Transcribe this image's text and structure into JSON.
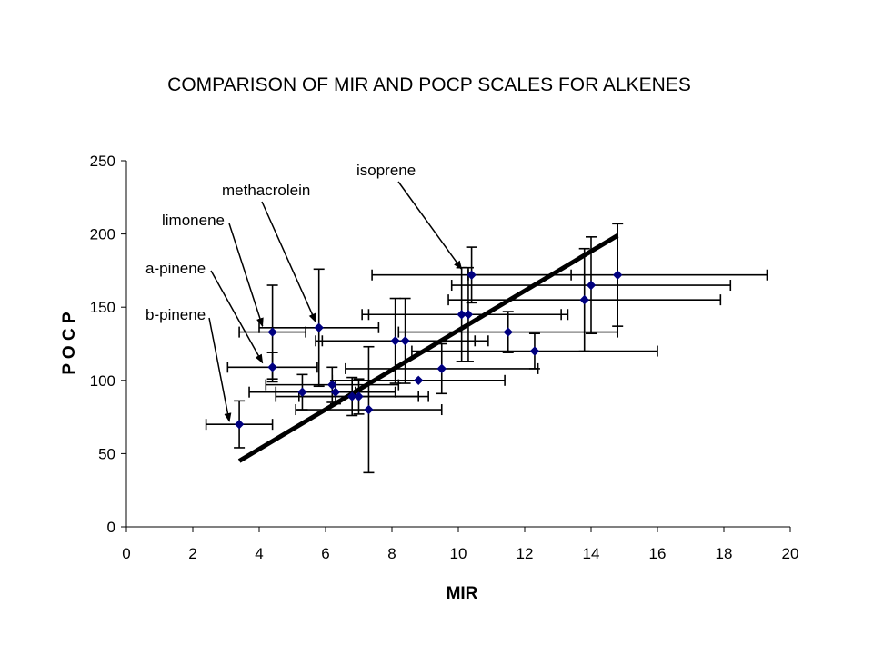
{
  "chart_data": {
    "type": "scatter",
    "title": "COMPARISON OF MIR AND POCP SCALES FOR ALKENES",
    "xlabel": "MIR",
    "ylabel": "P O C P",
    "xlim": [
      0,
      20
    ],
    "ylim": [
      0,
      250
    ],
    "x_ticks": [
      "0",
      "2",
      "4",
      "6",
      "8",
      "10",
      "12",
      "14",
      "16",
      "18",
      "20"
    ],
    "y_ticks": [
      "0",
      "50",
      "100",
      "150",
      "200",
      "250"
    ],
    "grid": false,
    "legend": "none",
    "marker_color": "#000080",
    "points": [
      {
        "x": 3.4,
        "y": 70,
        "xerr": 1.0,
        "yerr": 16
      },
      {
        "x": 4.4,
        "y": 109,
        "xerr": 1.35,
        "yerr": 10
      },
      {
        "x": 4.4,
        "y": 133,
        "xerr": 1.0,
        "yerr": 32
      },
      {
        "x": 5.3,
        "y": 92,
        "xerr": 1.6,
        "yerr": 12
      },
      {
        "x": 5.8,
        "y": 136,
        "xerr": 1.8,
        "yerr": 40
      },
      {
        "x": 6.2,
        "y": 97,
        "xerr": 2.0,
        "yerr": 12
      },
      {
        "x": 6.3,
        "y": 92,
        "xerr": 1.8,
        "yerr": 8
      },
      {
        "x": 6.8,
        "y": 89,
        "xerr": 2.3,
        "yerr": 13
      },
      {
        "x": 7.0,
        "y": 89,
        "xerr": 1.8,
        "yerr": 12
      },
      {
        "x": 7.3,
        "y": 80,
        "xerr": 2.2,
        "yerr": 43
      },
      {
        "x": 8.1,
        "y": 127,
        "xerr": 2.4,
        "yerr": 29
      },
      {
        "x": 8.4,
        "y": 127,
        "xerr": 2.5,
        "yerr": 29
      },
      {
        "x": 8.8,
        "y": 100,
        "xerr": 2.6,
        "yerr": 0
      },
      {
        "x": 9.5,
        "y": 108,
        "xerr": 2.9,
        "yerr": 17
      },
      {
        "x": 10.1,
        "y": 145,
        "xerr": 3.0,
        "yerr": 32
      },
      {
        "x": 10.3,
        "y": 145,
        "xerr": 3.0,
        "yerr": 32
      },
      {
        "x": 10.4,
        "y": 172,
        "xerr": 3.0,
        "yerr": 19
      },
      {
        "x": 11.5,
        "y": 133,
        "xerr": 3.3,
        "yerr": 14
      },
      {
        "x": 12.3,
        "y": 120,
        "xerr": 3.7,
        "yerr": 12
      },
      {
        "x": 13.8,
        "y": 155,
        "xerr": 4.1,
        "yerr": 35
      },
      {
        "x": 14.0,
        "y": 165,
        "xerr": 4.2,
        "yerr": 33
      },
      {
        "x": 14.8,
        "y": 172,
        "xerr": 4.5,
        "yerr": 35
      }
    ],
    "trendline": {
      "x": [
        3.4,
        14.8
      ],
      "y": [
        45,
        199
      ],
      "color": "#000000"
    },
    "annotations": [
      {
        "text": "isoprene",
        "target_x": 10.1,
        "target_y": 176
      },
      {
        "text": "methacrolein",
        "target_x": 5.7,
        "target_y": 140
      },
      {
        "text": "limonene",
        "target_x": 4.1,
        "target_y": 137
      },
      {
        "text": "a-pinene",
        "target_x": 4.1,
        "target_y": 112
      },
      {
        "text": "b-pinene",
        "target_x": 3.1,
        "target_y": 72
      }
    ]
  }
}
